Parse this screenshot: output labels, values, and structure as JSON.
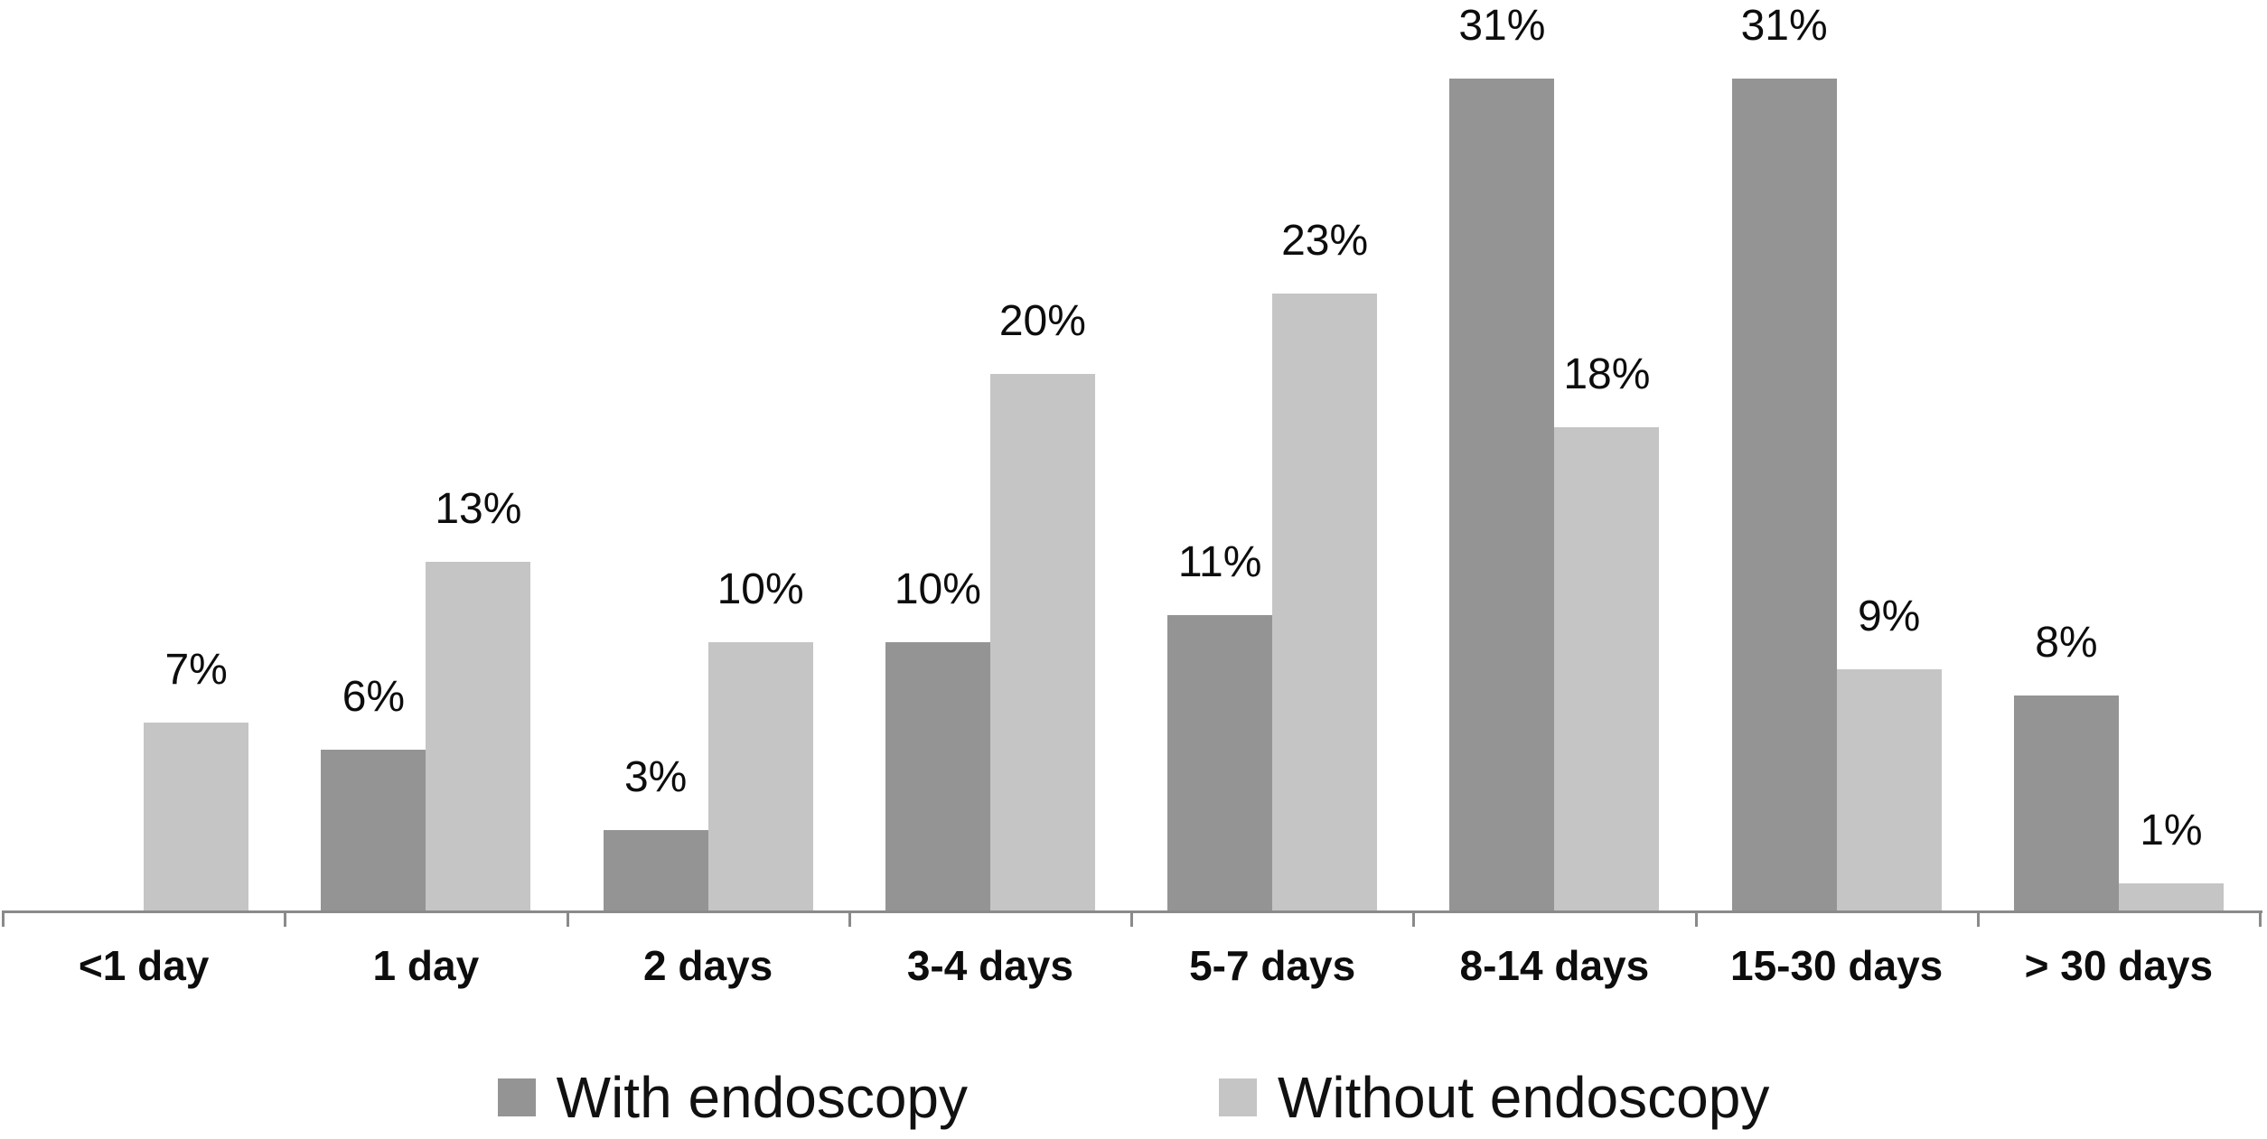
{
  "chart_data": {
    "type": "bar",
    "title": "",
    "xlabel": "",
    "ylabel": "",
    "categories": [
      "<1 day",
      "1 day",
      "2 days",
      "3-4 days",
      "5-7 days",
      "8-14 days",
      "15-30 days",
      "> 30 days"
    ],
    "series": [
      {
        "name": "With endoscopy",
        "color": "#949494",
        "values": [
          0,
          6,
          3,
          10,
          11,
          31,
          31,
          8
        ],
        "value_labels": [
          "",
          "6%",
          "3%",
          "10%",
          "11%",
          "31%",
          "31%",
          "8%"
        ]
      },
      {
        "name": "Without endoscopy",
        "color": "#c5c5c5",
        "values": [
          7,
          13,
          10,
          20,
          23,
          18,
          9,
          1
        ],
        "value_labels": [
          "7%",
          "13%",
          "10%",
          "20%",
          "23%",
          "18%",
          "9%",
          "1%"
        ]
      }
    ],
    "ylim": [
      0,
      34
    ],
    "y_axis_visible": false,
    "grid": false,
    "data_labels": true,
    "legend_position": "bottom",
    "axis_color": "#8a8a8a",
    "text_color": "#0d0d0d",
    "background_color": "#ffffff"
  }
}
